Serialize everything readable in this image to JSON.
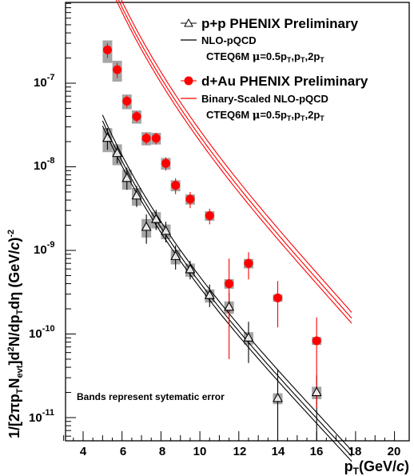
{
  "chart_data": {
    "type": "scatter",
    "xlabel_parts": {
      "base": "p",
      "sub": "T",
      "rest": "(GeV/",
      "c": "c",
      "close": ")"
    },
    "ylabel_parts": {
      "p1": "1/[2",
      "pi": "π",
      "p2": "p",
      "s1": "T",
      "p3": "N",
      "s2": "evt",
      "p4": "]d",
      "sup1": "2",
      "p5": "N/dp",
      "s3": "T",
      "p6": "d",
      "eta": "η",
      "p7": " (GeV/",
      "c": "c",
      "p8": ")",
      "sup2": "-2"
    },
    "xlim": [
      3,
      20
    ],
    "ylim_log10": [
      -11.25,
      -6.3
    ],
    "xscale": "linear",
    "yscale": "log",
    "x_ticks": [
      "4",
      "6",
      "8",
      "10",
      "12",
      "14",
      "16",
      "18",
      "20"
    ],
    "y_tick_labels": [
      {
        "base": "10",
        "exp": "-7"
      },
      {
        "base": "10",
        "exp": "-8"
      },
      {
        "base": "10",
        "exp": "-9"
      },
      {
        "base": "10",
        "exp": "-10"
      },
      {
        "base": "10",
        "exp": "-11"
      }
    ],
    "series": [
      {
        "name": "p+p PHENIX Preliminary",
        "marker": "open-triangle",
        "color": "#000000",
        "points": [
          {
            "x": 5.25,
            "y": 2.2e-08,
            "yerr_lo": 6e-09,
            "yerr_hi": 7e-09,
            "sys": 0.32
          },
          {
            "x": 5.75,
            "y": 1.45e-08,
            "yerr_lo": 3.5e-09,
            "yerr_hi": 4e-09,
            "sys": 0.28
          },
          {
            "x": 6.25,
            "y": 7.3e-09,
            "yerr_lo": 2e-09,
            "yerr_hi": 2.5e-09,
            "sys": 0.27
          },
          {
            "x": 6.75,
            "y": 4.5e-09,
            "yerr_lo": 1.2e-09,
            "yerr_hi": 1.4e-09,
            "sys": 0.24
          },
          {
            "x": 7.25,
            "y": 1.9e-09,
            "yerr_lo": 7e-10,
            "yerr_hi": 8e-10,
            "sys": 0.25
          },
          {
            "x": 7.75,
            "y": 2.35e-09,
            "yerr_lo": 6e-10,
            "yerr_hi": 7e-10,
            "sys": 0.22
          },
          {
            "x": 8.25,
            "y": 1.7e-09,
            "yerr_lo": 4.5e-10,
            "yerr_hi": 5e-10,
            "sys": 0.2
          },
          {
            "x": 8.75,
            "y": 8.5e-10,
            "yerr_lo": 2.6e-10,
            "yerr_hi": 3e-10,
            "sys": 0.2
          },
          {
            "x": 9.5,
            "y": 5.9e-10,
            "yerr_lo": 1.4e-10,
            "yerr_hi": 1.6e-10,
            "sys": 0.18
          },
          {
            "x": 10.5,
            "y": 2.9e-10,
            "yerr_lo": 8e-11,
            "yerr_hi": 1e-10,
            "sys": 0.18
          },
          {
            "x": 11.5,
            "y": 2.1e-10,
            "yerr_lo": 8e-11,
            "yerr_hi": 1e-10,
            "sys": 0.17
          },
          {
            "x": 12.5,
            "y": 9e-11,
            "yerr_lo": 4.5e-11,
            "yerr_hi": 5e-11,
            "sys": 0.17
          },
          {
            "x": 14.0,
            "y": 1.7e-11,
            "yerr_lo": 1.65e-11,
            "yerr_hi": 2e-11,
            "sys": 0.15
          },
          {
            "x": 16.0,
            "y": 2e-11,
            "yerr_lo": 1.95e-11,
            "yerr_hi": 1.2e-11,
            "sys": 0.17
          }
        ]
      },
      {
        "name": "d+Au PHENIX Preliminary",
        "marker": "filled-circle",
        "color": "#ff0000",
        "points": [
          {
            "x": 5.25,
            "y": 2.5e-07,
            "yerr_lo": 5e-08,
            "yerr_hi": 5e-08,
            "sys": 0.3
          },
          {
            "x": 5.75,
            "y": 1.45e-07,
            "yerr_lo": 3e-08,
            "yerr_hi": 3e-08,
            "sys": 0.28
          },
          {
            "x": 6.25,
            "y": 6.1e-08,
            "yerr_lo": 1e-08,
            "yerr_hi": 1e-08,
            "sys": 0.2
          },
          {
            "x": 6.75,
            "y": 4e-08,
            "yerr_lo": 6e-09,
            "yerr_hi": 6e-09,
            "sys": 0.18
          },
          {
            "x": 7.25,
            "y": 2.2e-08,
            "yerr_lo": 3.5e-09,
            "yerr_hi": 3.5e-09,
            "sys": 0.18
          },
          {
            "x": 7.75,
            "y": 2.2e-08,
            "yerr_lo": 3.5e-09,
            "yerr_hi": 3.5e-09,
            "sys": 0.16
          },
          {
            "x": 8.25,
            "y": 1.1e-08,
            "yerr_lo": 2e-09,
            "yerr_hi": 2e-09,
            "sys": 0.16
          },
          {
            "x": 8.75,
            "y": 6e-09,
            "yerr_lo": 1.3e-09,
            "yerr_hi": 1.3e-09,
            "sys": 0.15
          },
          {
            "x": 9.5,
            "y": 4.1e-09,
            "yerr_lo": 9e-10,
            "yerr_hi": 9e-10,
            "sys": 0.14
          },
          {
            "x": 10.5,
            "y": 2.6e-09,
            "yerr_lo": 5.5e-10,
            "yerr_hi": 5.5e-10,
            "sys": 0.13
          },
          {
            "x": 11.5,
            "y": 4e-10,
            "yerr_lo": 3.5e-10,
            "yerr_hi": 4e-10,
            "sys": 0.13
          },
          {
            "x": 12.5,
            "y": 7e-10,
            "yerr_lo": 2.5e-10,
            "yerr_hi": 2.5e-10,
            "sys": 0.13
          },
          {
            "x": 14.0,
            "y": 2.7e-10,
            "yerr_lo": 1.5e-10,
            "yerr_hi": 1.6e-10,
            "sys": 0.1
          },
          {
            "x": 16.0,
            "y": 8.3e-11,
            "yerr_lo": 7e-11,
            "yerr_hi": 7.5e-11,
            "sys": 0.11
          }
        ]
      }
    ],
    "curves": [
      {
        "name": "NLO-pQCD",
        "color": "#000000",
        "count": 3
      },
      {
        "name": "Binary-Scaled NLO-pQCD",
        "color": "#ff0000",
        "count": 3
      }
    ],
    "legend": {
      "placement": "top-right",
      "entries": [
        {
          "symbol": "open-triangle",
          "text": "p+p PHENIX Preliminary"
        },
        {
          "symbol": "black-line",
          "text": "NLO-pQCD",
          "sub": {
            "p1": "CTEQ6M ",
            "mu": "μ",
            "p2": "=0.5p",
            "s1": "T",
            "p3": ",p",
            "s2": "T",
            "p4": ",2p",
            "s3": "T"
          }
        },
        {
          "symbol": "filled-circle",
          "text": "d+Au PHENIX Preliminary"
        },
        {
          "symbol": "red-line",
          "text": "Binary-Scaled NLO-pQCD",
          "sub": {
            "p1": "CTEQ6M ",
            "mu": "μ",
            "p2": "=0.5p",
            "s1": "T",
            "p3": ",p",
            "s2": "T",
            "p4": ",2p",
            "s3": "T"
          }
        }
      ]
    },
    "annotation": "Bands represent sytematic error",
    "colors": {
      "pp": "#000000",
      "dau": "#ff0000",
      "band": "#a0a0a0"
    }
  }
}
